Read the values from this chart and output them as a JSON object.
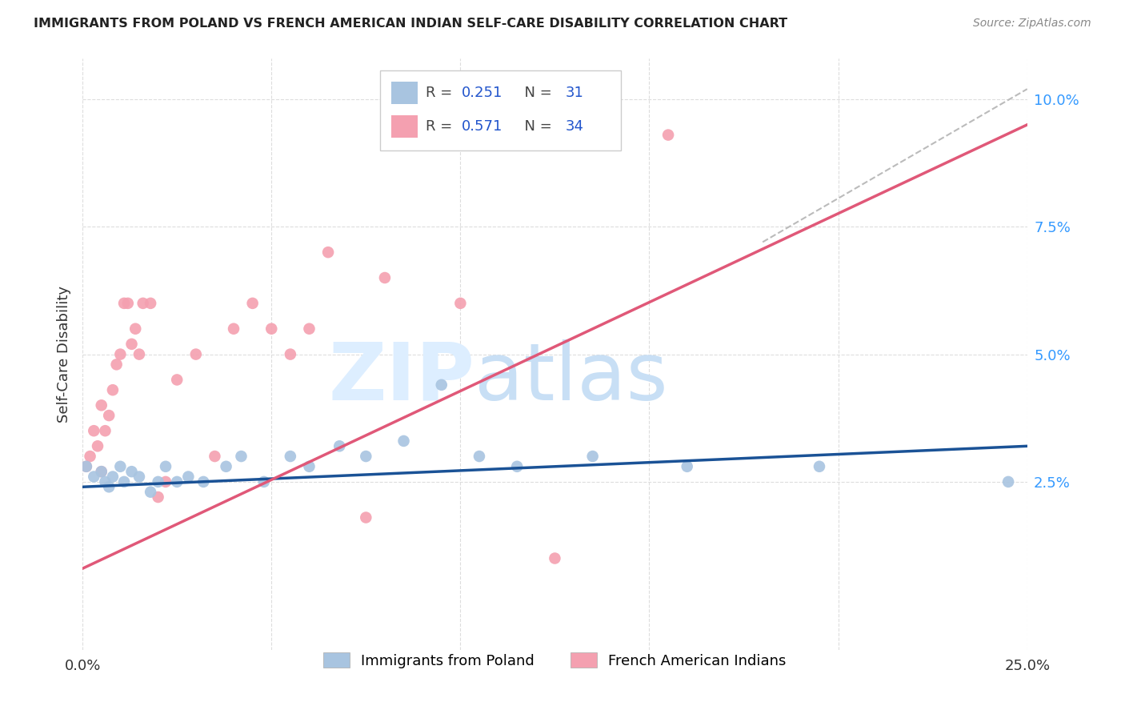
{
  "title": "IMMIGRANTS FROM POLAND VS FRENCH AMERICAN INDIAN SELF-CARE DISABILITY CORRELATION CHART",
  "source": "Source: ZipAtlas.com",
  "ylabel": "Self-Care Disability",
  "xlim": [
    0.0,
    0.25
  ],
  "ylim": [
    -0.008,
    0.108
  ],
  "yticks_right": [
    0.025,
    0.05,
    0.075,
    0.1
  ],
  "ytick_labels_right": [
    "2.5%",
    "5.0%",
    "7.5%",
    "10.0%"
  ],
  "legend_R1": "0.251",
  "legend_N1": "31",
  "legend_R2": "0.571",
  "legend_N2": "34",
  "legend_label1": "Immigrants from Poland",
  "legend_label2": "French American Indians",
  "blue_color": "#a8c4e0",
  "pink_color": "#f4a0b0",
  "blue_line_color": "#1a5296",
  "pink_line_color": "#e05878",
  "dashed_line_color": "#bbbbbb",
  "grid_color": "#dddddd",
  "blue_line_x0": 0.0,
  "blue_line_y0": 0.024,
  "blue_line_x1": 0.25,
  "blue_line_y1": 0.032,
  "pink_line_x0": 0.0,
  "pink_line_y0": 0.008,
  "pink_line_x1": 0.25,
  "pink_line_y1": 0.095,
  "dash_line_x0": 0.18,
  "dash_line_y0": 0.072,
  "dash_line_x1": 0.25,
  "dash_line_y1": 0.102,
  "blue_scatter_x": [
    0.001,
    0.003,
    0.005,
    0.006,
    0.007,
    0.008,
    0.01,
    0.011,
    0.013,
    0.015,
    0.018,
    0.02,
    0.022,
    0.025,
    0.028,
    0.032,
    0.038,
    0.042,
    0.048,
    0.055,
    0.06,
    0.068,
    0.075,
    0.085,
    0.095,
    0.105,
    0.115,
    0.135,
    0.16,
    0.195,
    0.245
  ],
  "blue_scatter_y": [
    0.028,
    0.026,
    0.027,
    0.025,
    0.024,
    0.026,
    0.028,
    0.025,
    0.027,
    0.026,
    0.023,
    0.025,
    0.028,
    0.025,
    0.026,
    0.025,
    0.028,
    0.03,
    0.025,
    0.03,
    0.028,
    0.032,
    0.03,
    0.033,
    0.044,
    0.03,
    0.028,
    0.03,
    0.028,
    0.028,
    0.025
  ],
  "pink_scatter_x": [
    0.001,
    0.002,
    0.003,
    0.004,
    0.005,
    0.005,
    0.006,
    0.007,
    0.008,
    0.009,
    0.01,
    0.011,
    0.012,
    0.013,
    0.014,
    0.015,
    0.016,
    0.018,
    0.02,
    0.022,
    0.025,
    0.03,
    0.035,
    0.04,
    0.045,
    0.05,
    0.055,
    0.06,
    0.065,
    0.075,
    0.08,
    0.1,
    0.125,
    0.155
  ],
  "pink_scatter_y": [
    0.028,
    0.03,
    0.035,
    0.032,
    0.027,
    0.04,
    0.035,
    0.038,
    0.043,
    0.048,
    0.05,
    0.06,
    0.06,
    0.052,
    0.055,
    0.05,
    0.06,
    0.06,
    0.022,
    0.025,
    0.045,
    0.05,
    0.03,
    0.055,
    0.06,
    0.055,
    0.05,
    0.055,
    0.07,
    0.018,
    0.065,
    0.06,
    0.01,
    0.093
  ]
}
